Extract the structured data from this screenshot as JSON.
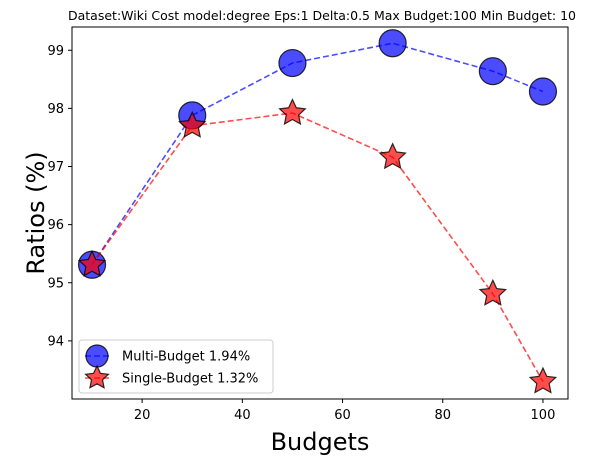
{
  "chart_data": {
    "type": "line",
    "title": "Dataset:Wiki Cost model:degree Eps:1 Delta:0.5 Max Budget:100 Min Budget: 10",
    "xlabel": "Budgets",
    "ylabel": "Ratios (%)",
    "xlim": [
      6,
      105
    ],
    "ylim": [
      93.0,
      99.4
    ],
    "xticks": [
      20,
      40,
      60,
      80,
      100
    ],
    "yticks": [
      94,
      95,
      96,
      97,
      98,
      99
    ],
    "grid": false,
    "legend_position": "lower-left",
    "x": [
      10,
      30,
      50,
      70,
      90,
      100
    ],
    "series": [
      {
        "name": "Multi-Budget 1.94%",
        "values": [
          95.31,
          97.88,
          98.78,
          99.12,
          98.64,
          98.29
        ],
        "color": "#0000ff",
        "marker": "circle"
      },
      {
        "name": "Single-Budget 1.32%",
        "values": [
          95.31,
          97.7,
          97.92,
          97.16,
          94.81,
          93.3
        ],
        "color": "#ff0000",
        "marker": "star"
      }
    ]
  }
}
